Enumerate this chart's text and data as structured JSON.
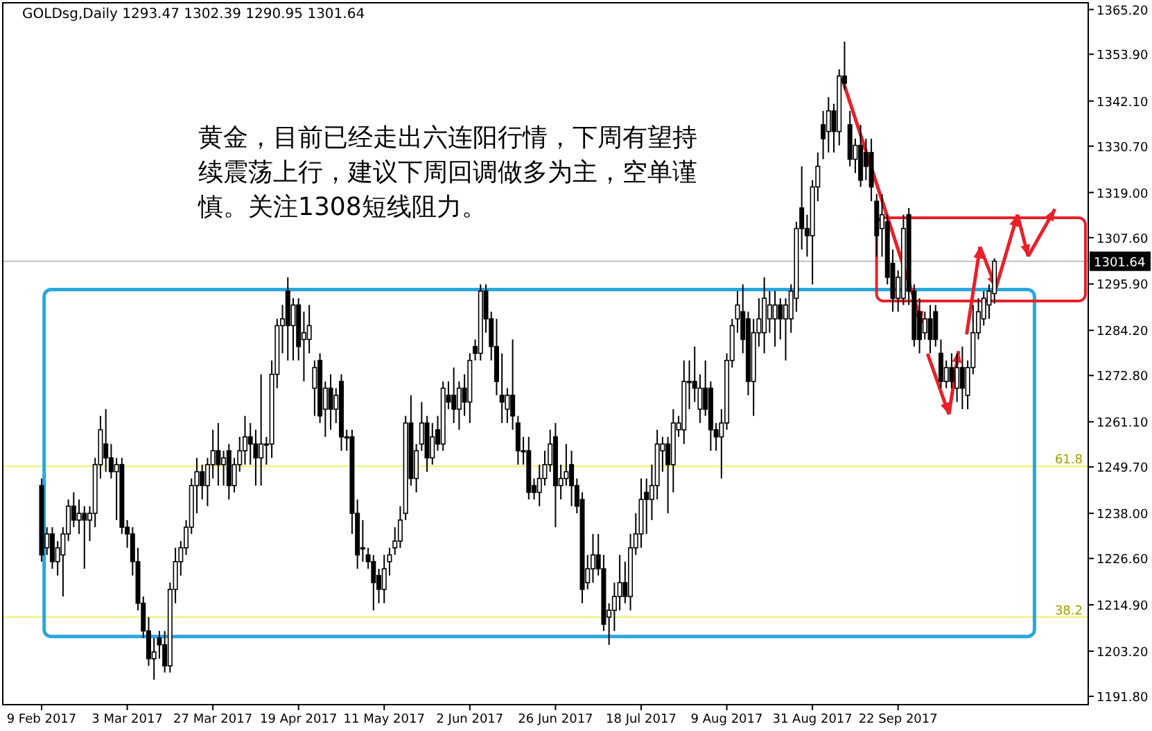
{
  "chart_data": {
    "type": "candlestick",
    "annotations": [
      "GOLDsg,Daily  1293.47 1302.39 1290.95 1301.64",
      "黄金，目前已经走出六连阳行情，下周有望持续震荡上行，建议下周回调做多为主，空单谨慎。关注1308短线阻力。",
      {
        "text": "61.8",
        "y": 1249.9
      },
      {
        "text": "38.2",
        "y": 1211.8
      }
    ],
    "categories": [
      "9 Feb 2017",
      null,
      null,
      null,
      null,
      null,
      null,
      null,
      null,
      null,
      null,
      null,
      null,
      null,
      null,
      null,
      "3 Mar 2017",
      null,
      null,
      null,
      null,
      null,
      null,
      null,
      null,
      null,
      null,
      null,
      null,
      null,
      null,
      null,
      "27 Mar 2017",
      null,
      null,
      null,
      null,
      null,
      null,
      null,
      null,
      null,
      null,
      null,
      null,
      null,
      null,
      null,
      "19 Apr 2017",
      null,
      null,
      null,
      null,
      null,
      null,
      null,
      null,
      null,
      null,
      null,
      null,
      null,
      null,
      null,
      "11 May 2017",
      null,
      null,
      null,
      null,
      null,
      null,
      null,
      null,
      null,
      null,
      null,
      null,
      null,
      null,
      null,
      "2 Jun 2017",
      null,
      null,
      null,
      null,
      null,
      null,
      null,
      null,
      null,
      null,
      null,
      null,
      null,
      null,
      null,
      "26 Jun 2017",
      null,
      null,
      null,
      null,
      null,
      null,
      null,
      null,
      null,
      null,
      null,
      null,
      null,
      null,
      null,
      "18 Jul 2017",
      null,
      null,
      null,
      null,
      null,
      null,
      null,
      null,
      null,
      null,
      null,
      null,
      null,
      null,
      null,
      "9 Aug 2017",
      null,
      null,
      null,
      null,
      null,
      null,
      null,
      null,
      null,
      null,
      null,
      null,
      null,
      null,
      null,
      "31 Aug 2017",
      null,
      null,
      null,
      null,
      null,
      null,
      null,
      null,
      null,
      null,
      null,
      null,
      null,
      null,
      null,
      "22 Sep 2017",
      null,
      null,
      null,
      null,
      null,
      null,
      null,
      null,
      null,
      null,
      null,
      null,
      null,
      null,
      null,
      null,
      null,
      null,
      null,
      null,
      null,
      null,
      null,
      null,
      null,
      null,
      null,
      null,
      null,
      null,
      null,
      null,
      null,
      null
    ],
    "ohlc": [
      [
        1245.0,
        1246.8,
        1225.8,
        1227.5
      ],
      [
        1229.3,
        1234.5,
        1227.5,
        1232.8
      ],
      [
        1232.8,
        1234.5,
        1224.0,
        1225.8
      ],
      [
        1225.8,
        1231.0,
        1222.3,
        1229.3
      ],
      [
        1227.5,
        1234.5,
        1217.0,
        1232.8
      ],
      [
        1232.8,
        1241.5,
        1231.0,
        1239.8
      ],
      [
        1239.8,
        1243.3,
        1234.5,
        1236.3
      ],
      [
        1236.3,
        1241.5,
        1232.8,
        1238.0
      ],
      [
        1238.0,
        1239.8,
        1224.0,
        1236.3
      ],
      [
        1236.3,
        1239.8,
        1231.0,
        1238.0
      ],
      [
        1238.0,
        1252.0,
        1234.5,
        1250.3
      ],
      [
        1250.3,
        1262.6,
        1246.8,
        1259.1
      ],
      [
        1255.5,
        1264.3,
        1248.5,
        1252.0
      ],
      [
        1252.0,
        1255.5,
        1246.8,
        1248.5
      ],
      [
        1248.5,
        1252.0,
        1236.3,
        1250.3
      ],
      [
        1250.3,
        1252.0,
        1232.8,
        1234.5
      ],
      [
        1234.5,
        1236.3,
        1229.3,
        1232.8
      ],
      [
        1232.8,
        1234.5,
        1222.3,
        1225.8
      ],
      [
        1225.8,
        1229.3,
        1213.5,
        1215.3
      ],
      [
        1215.3,
        1217.0,
        1206.5,
        1208.3
      ],
      [
        1208.3,
        1211.8,
        1199.5,
        1201.3
      ],
      [
        1201.3,
        1206.5,
        1196.0,
        1203.0
      ],
      [
        1206.5,
        1208.3,
        1201.3,
        1204.8
      ],
      [
        1204.8,
        1208.3,
        1197.8,
        1199.5
      ],
      [
        1199.5,
        1220.5,
        1197.8,
        1218.8
      ],
      [
        1218.8,
        1229.3,
        1215.3,
        1225.8
      ],
      [
        1225.8,
        1231.0,
        1222.3,
        1229.3
      ],
      [
        1229.3,
        1236.3,
        1227.5,
        1234.5
      ],
      [
        1234.5,
        1246.8,
        1232.8,
        1245.0
      ],
      [
        1245.0,
        1252.0,
        1238.0,
        1248.5
      ],
      [
        1248.5,
        1250.3,
        1241.5,
        1245.0
      ],
      [
        1245.0,
        1252.0,
        1239.8,
        1250.3
      ],
      [
        1250.3,
        1259.1,
        1246.8,
        1253.8
      ],
      [
        1253.8,
        1260.8,
        1245.0,
        1250.3
      ],
      [
        1250.3,
        1253.8,
        1245.0,
        1252.0
      ],
      [
        1253.8,
        1255.5,
        1241.5,
        1245.0
      ],
      [
        1245.0,
        1252.0,
        1243.3,
        1250.3
      ],
      [
        1250.3,
        1257.3,
        1248.5,
        1253.8
      ],
      [
        1253.8,
        1262.6,
        1250.3,
        1257.3
      ],
      [
        1257.3,
        1260.8,
        1250.3,
        1255.5
      ],
      [
        1255.5,
        1259.1,
        1245.0,
        1252.0
      ],
      [
        1252.0,
        1273.1,
        1245.0,
        1255.5
      ],
      [
        1255.5,
        1257.3,
        1250.3,
        1255.5
      ],
      [
        1255.5,
        1276.6,
        1252.0,
        1273.1
      ],
      [
        1273.1,
        1287.1,
        1269.6,
        1285.4
      ],
      [
        1285.4,
        1290.6,
        1278.4,
        1287.1
      ],
      [
        1294.1,
        1297.6,
        1276.6,
        1285.4
      ],
      [
        1285.4,
        1292.3,
        1276.6,
        1290.6
      ],
      [
        1290.6,
        1292.3,
        1276.6,
        1280.1
      ],
      [
        1281.9,
        1288.9,
        1271.3,
        1283.6
      ],
      [
        1281.9,
        1290.6,
        1278.4,
        1285.4
      ],
      [
        1269.6,
        1276.6,
        1262.6,
        1274.8
      ],
      [
        1276.6,
        1278.4,
        1260.8,
        1262.6
      ],
      [
        1264.3,
        1271.3,
        1257.3,
        1269.6
      ],
      [
        1269.6,
        1273.1,
        1259.1,
        1264.3
      ],
      [
        1264.3,
        1269.6,
        1260.8,
        1267.8
      ],
      [
        1271.3,
        1273.1,
        1253.8,
        1257.3
      ],
      [
        1257.3,
        1259.1,
        1253.8,
        1257.3
      ],
      [
        1257.3,
        1259.1,
        1232.8,
        1238.0
      ],
      [
        1238.0,
        1241.5,
        1224.0,
        1227.5
      ],
      [
        1229.3,
        1236.3,
        1225.8,
        1229.3
      ],
      [
        1227.5,
        1229.3,
        1224.0,
        1225.8
      ],
      [
        1225.8,
        1227.5,
        1213.5,
        1220.5
      ],
      [
        1222.3,
        1224.0,
        1215.3,
        1218.8
      ],
      [
        1218.8,
        1227.5,
        1215.3,
        1224.0
      ],
      [
        1225.8,
        1229.3,
        1222.3,
        1227.5
      ],
      [
        1229.3,
        1234.5,
        1227.5,
        1231.0
      ],
      [
        1231.0,
        1239.8,
        1229.3,
        1236.3
      ],
      [
        1238.0,
        1262.6,
        1236.3,
        1260.8
      ],
      [
        1260.8,
        1267.8,
        1245.0,
        1246.8
      ],
      [
        1246.8,
        1255.5,
        1243.3,
        1253.8
      ],
      [
        1255.5,
        1266.1,
        1253.8,
        1260.8
      ],
      [
        1260.8,
        1262.6,
        1248.5,
        1252.0
      ],
      [
        1252.0,
        1260.8,
        1250.3,
        1257.3
      ],
      [
        1259.1,
        1262.6,
        1253.8,
        1255.5
      ],
      [
        1255.5,
        1271.3,
        1253.8,
        1269.6
      ],
      [
        1267.8,
        1271.3,
        1264.3,
        1266.1
      ],
      [
        1267.8,
        1274.8,
        1260.8,
        1264.3
      ],
      [
        1264.3,
        1271.3,
        1259.1,
        1269.6
      ],
      [
        1269.6,
        1273.1,
        1262.6,
        1266.1
      ],
      [
        1266.1,
        1278.4,
        1260.8,
        1276.6
      ],
      [
        1280.1,
        1281.9,
        1276.6,
        1278.4
      ],
      [
        1278.4,
        1295.8,
        1276.6,
        1294.1
      ],
      [
        1294.1,
        1295.8,
        1283.6,
        1287.1
      ],
      [
        1287.1,
        1288.9,
        1276.6,
        1280.1
      ],
      [
        1280.1,
        1287.1,
        1267.8,
        1271.3
      ],
      [
        1267.8,
        1278.4,
        1260.8,
        1266.1
      ],
      [
        1264.3,
        1269.6,
        1260.8,
        1267.8
      ],
      [
        1267.8,
        1281.9,
        1259.1,
        1262.6
      ],
      [
        1260.8,
        1262.6,
        1250.3,
        1253.8
      ],
      [
        1253.8,
        1257.3,
        1250.3,
        1253.8
      ],
      [
        1253.8,
        1257.3,
        1241.5,
        1243.3
      ],
      [
        1245.0,
        1246.8,
        1241.5,
        1243.3
      ],
      [
        1243.3,
        1250.3,
        1239.8,
        1246.8
      ],
      [
        1246.8,
        1253.8,
        1245.0,
        1250.3
      ],
      [
        1250.3,
        1259.1,
        1248.5,
        1255.5
      ],
      [
        1257.3,
        1260.8,
        1234.5,
        1245.0
      ],
      [
        1245.0,
        1250.3,
        1241.5,
        1246.8
      ],
      [
        1246.8,
        1255.5,
        1245.0,
        1248.5
      ],
      [
        1250.3,
        1253.8,
        1239.8,
        1245.0
      ],
      [
        1245.0,
        1246.8,
        1238.0,
        1239.8
      ],
      [
        1241.5,
        1243.3,
        1215.3,
        1218.8
      ],
      [
        1220.5,
        1227.5,
        1218.8,
        1224.0
      ],
      [
        1224.0,
        1232.8,
        1220.5,
        1227.5
      ],
      [
        1227.5,
        1232.8,
        1222.3,
        1224.0
      ],
      [
        1224.0,
        1227.5,
        1208.3,
        1210.0
      ],
      [
        1211.8,
        1215.3,
        1204.8,
        1213.5
      ],
      [
        1213.5,
        1220.5,
        1208.3,
        1217.0
      ],
      [
        1217.0,
        1227.5,
        1213.5,
        1220.5
      ],
      [
        1220.5,
        1225.8,
        1215.3,
        1217.0
      ],
      [
        1217.0,
        1232.8,
        1213.5,
        1229.3
      ],
      [
        1229.3,
        1238.0,
        1227.5,
        1232.8
      ],
      [
        1232.8,
        1246.8,
        1229.3,
        1241.5
      ],
      [
        1243.3,
        1246.8,
        1232.8,
        1241.5
      ],
      [
        1241.5,
        1250.3,
        1236.3,
        1245.0
      ],
      [
        1245.0,
        1259.1,
        1241.5,
        1255.5
      ],
      [
        1253.8,
        1257.3,
        1248.5,
        1255.5
      ],
      [
        1255.5,
        1257.3,
        1238.0,
        1250.3
      ],
      [
        1250.3,
        1264.3,
        1243.3,
        1260.8
      ],
      [
        1259.1,
        1262.6,
        1257.3,
        1260.8
      ],
      [
        1259.1,
        1276.6,
        1255.5,
        1271.3
      ],
      [
        1271.3,
        1276.6,
        1264.3,
        1271.3
      ],
      [
        1271.3,
        1280.1,
        1266.1,
        1269.6
      ],
      [
        1264.3,
        1273.1,
        1260.8,
        1269.6
      ],
      [
        1269.6,
        1276.6,
        1262.6,
        1264.3
      ],
      [
        1269.6,
        1271.3,
        1253.8,
        1259.1
      ],
      [
        1259.1,
        1260.8,
        1253.8,
        1257.3
      ],
      [
        1257.3,
        1264.3,
        1246.8,
        1260.8
      ],
      [
        1260.8,
        1278.4,
        1259.1,
        1276.6
      ],
      [
        1276.6,
        1287.1,
        1274.8,
        1285.4
      ],
      [
        1287.1,
        1294.1,
        1283.6,
        1290.6
      ],
      [
        1288.9,
        1295.8,
        1278.4,
        1281.9
      ],
      [
        1287.1,
        1288.9,
        1267.8,
        1271.3
      ],
      [
        1271.3,
        1287.1,
        1262.6,
        1283.6
      ],
      [
        1283.6,
        1292.3,
        1280.1,
        1287.1
      ],
      [
        1283.6,
        1297.6,
        1278.4,
        1292.3
      ],
      [
        1287.1,
        1294.1,
        1283.6,
        1290.6
      ],
      [
        1287.1,
        1294.1,
        1280.1,
        1290.6
      ],
      [
        1290.6,
        1292.3,
        1281.9,
        1287.1
      ],
      [
        1287.1,
        1292.3,
        1276.6,
        1290.6
      ],
      [
        1287.1,
        1295.8,
        1283.6,
        1294.1
      ],
      [
        1292.3,
        1311.6,
        1288.9,
        1309.9
      ],
      [
        1315.1,
        1325.6,
        1304.6,
        1309.9
      ],
      [
        1309.9,
        1313.4,
        1302.8,
        1308.1
      ],
      [
        1308.1,
        1322.1,
        1295.8,
        1320.4
      ],
      [
        1320.4,
        1329.1,
        1316.8,
        1325.6
      ],
      [
        1336.1,
        1339.6,
        1327.4,
        1332.6
      ],
      [
        1334.4,
        1343.1,
        1329.1,
        1339.6
      ],
      [
        1339.6,
        1341.4,
        1329.1,
        1334.4
      ],
      [
        1334.4,
        1350.1,
        1330.9,
        1348.4
      ],
      [
        1348.4,
        1357.1,
        1344.9,
        1346.6
      ],
      [
        1336.1,
        1339.6,
        1325.6,
        1327.4
      ],
      [
        1327.4,
        1332.6,
        1323.9,
        1330.9
      ],
      [
        1330.9,
        1336.1,
        1320.4,
        1322.1
      ],
      [
        1329.1,
        1332.6,
        1322.1,
        1325.6
      ],
      [
        1329.1,
        1332.6,
        1316.8,
        1320.4
      ],
      [
        1316.8,
        1318.6,
        1302.8,
        1308.1
      ],
      [
        1309.9,
        1318.6,
        1302.8,
        1313.4
      ],
      [
        1311.6,
        1313.4,
        1295.8,
        1297.6
      ],
      [
        1301.1,
        1304.6,
        1288.9,
        1292.3
      ],
      [
        1292.3,
        1299.3,
        1288.9,
        1297.6
      ],
      [
        1292.3,
        1313.4,
        1290.6,
        1309.9
      ],
      [
        1313.4,
        1315.1,
        1290.6,
        1294.1
      ],
      [
        1294.1,
        1295.8,
        1280.1,
        1281.9
      ],
      [
        1288.9,
        1292.3,
        1278.4,
        1281.9
      ],
      [
        1283.6,
        1288.9,
        1281.9,
        1287.1
      ],
      [
        1287.1,
        1290.6,
        1278.4,
        1281.9
      ],
      [
        1288.9,
        1290.6,
        1280.1,
        1281.9
      ],
      [
        1278.4,
        1281.9,
        1269.6,
        1271.3
      ],
      [
        1271.3,
        1276.6,
        1269.6,
        1274.8
      ],
      [
        1274.8,
        1278.4,
        1269.6,
        1271.3
      ],
      [
        1269.6,
        1278.4,
        1266.1,
        1274.8
      ],
      [
        1274.8,
        1280.1,
        1264.3,
        1269.6
      ],
      [
        1267.8,
        1276.6,
        1264.3,
        1274.8
      ],
      [
        1274.8,
        1290.6,
        1273.1,
        1283.6
      ],
      [
        1283.6,
        1292.3,
        1281.9,
        1288.9
      ],
      [
        1287.1,
        1294.1,
        1285.4,
        1292.3
      ],
      [
        1290.6,
        1295.8,
        1287.1,
        1294.1
      ],
      [
        1293.47,
        1302.39,
        1290.95,
        1301.64
      ],
      null,
      null,
      null,
      null,
      null,
      null,
      null,
      null,
      null,
      null,
      null,
      null,
      null,
      null,
      null,
      null
    ],
    "ylim": [
      1189.7,
      1366.9
    ],
    "yticks": [
      {
        "value": 1191.8,
        "label": "1191.80"
      },
      {
        "value": 1203.2,
        "label": "1203.20"
      },
      {
        "value": 1214.9,
        "label": "1214.90"
      },
      {
        "value": 1226.6,
        "label": "1226.60"
      },
      {
        "value": 1238.0,
        "label": "1238.00"
      },
      {
        "value": 1249.7,
        "label": "1249.70"
      },
      {
        "value": 1261.1,
        "label": "1261.10"
      },
      {
        "value": 1272.8,
        "label": "1272.80"
      },
      {
        "value": 1284.2,
        "label": "1284.20"
      },
      {
        "value": 1295.9,
        "label": "1295.90"
      },
      {
        "value": 1307.6,
        "label": "1307.60"
      },
      {
        "value": 1319.0,
        "label": "1319.00"
      },
      {
        "value": 1330.7,
        "label": "1330.70"
      },
      {
        "value": 1342.1,
        "label": "1342.10"
      },
      {
        "value": 1353.9,
        "label": "1353.90"
      },
      {
        "value": 1365.2,
        "label": "1365.20"
      }
    ],
    "ref_lines": [
      {
        "axis": "y",
        "value": 1301.64,
        "label": "1301.64",
        "color": "#c0c0c0"
      },
      {
        "axis": "y",
        "value": 1249.9,
        "color": "#f0f060"
      },
      {
        "axis": "y",
        "value": 1211.8,
        "color": "#f0f060"
      }
    ]
  }
}
